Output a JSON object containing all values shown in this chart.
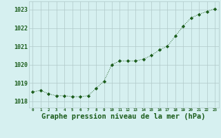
{
  "x": [
    0,
    1,
    2,
    3,
    4,
    5,
    6,
    7,
    8,
    9,
    10,
    11,
    12,
    13,
    14,
    15,
    16,
    17,
    18,
    19,
    20,
    21,
    22,
    23
  ],
  "y": [
    1018.5,
    1018.6,
    1018.4,
    1018.3,
    1018.3,
    1018.25,
    1018.25,
    1018.3,
    1018.7,
    1019.1,
    1020.0,
    1020.2,
    1020.2,
    1020.2,
    1020.3,
    1020.5,
    1020.8,
    1021.0,
    1021.55,
    1022.1,
    1022.55,
    1022.75,
    1022.9,
    1023.05
  ],
  "line_color": "#1a5c1a",
  "marker": "D",
  "marker_size": 2.2,
  "bg_color": "#d6f0f0",
  "grid_color": "#b0c8c8",
  "xlabel": "Graphe pression niveau de la mer (hPa)",
  "xlabel_fontsize": 7.5,
  "ytick_labels": [
    "1018",
    "1019",
    "1020",
    "1021",
    "1022",
    "1023"
  ],
  "ytick_values": [
    1018,
    1019,
    1020,
    1021,
    1022,
    1023
  ],
  "ylim": [
    1017.65,
    1023.45
  ],
  "xlim": [
    -0.5,
    23.5
  ],
  "xtick_values": [
    0,
    1,
    2,
    3,
    4,
    5,
    6,
    7,
    8,
    9,
    10,
    11,
    12,
    13,
    14,
    15,
    16,
    17,
    18,
    19,
    20,
    21,
    22,
    23
  ],
  "tick_color": "#1a5c1a",
  "ytick_fontsize": 6.0,
  "xtick_fontsize": 4.2
}
